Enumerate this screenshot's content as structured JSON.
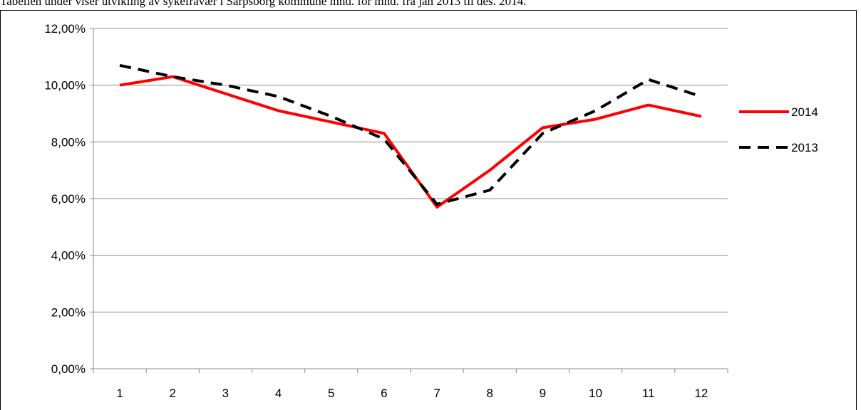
{
  "caption": "Tabellen under viser utvikling av sykefravær i Sarpsborg kommune mnd. for mnd. fra jan 2013 til des. 2014.",
  "chart_data": {
    "type": "line",
    "categories": [
      "1",
      "2",
      "3",
      "4",
      "5",
      "6",
      "7",
      "8",
      "9",
      "10",
      "11",
      "12"
    ],
    "ylim": [
      0,
      12
    ],
    "y_ticks": [
      "0,00%",
      "2,00%",
      "4,00%",
      "6,00%",
      "8,00%",
      "10,00%",
      "12,00%"
    ],
    "y_tick_values": [
      0,
      2,
      4,
      6,
      8,
      10,
      12
    ],
    "grid": true,
    "legend_position": "right",
    "series": [
      {
        "name": "2014",
        "color": "#ff0000",
        "style": "solid",
        "values": [
          10.0,
          10.3,
          9.7,
          9.1,
          8.7,
          8.3,
          5.7,
          7.0,
          8.5,
          8.8,
          9.3,
          8.9
        ]
      },
      {
        "name": "2013",
        "color": "#000000",
        "style": "dashed",
        "values": [
          10.7,
          10.3,
          10.0,
          9.6,
          8.9,
          8.1,
          5.8,
          6.3,
          8.3,
          9.1,
          10.2,
          9.6
        ]
      }
    ]
  }
}
